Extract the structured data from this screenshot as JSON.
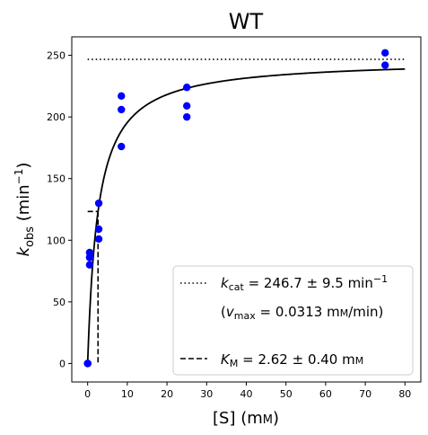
{
  "chart_data": {
    "type": "scatter",
    "title": "WT",
    "xlabel": "[S] (mM)",
    "ylabel": "k_obs (min^-1)",
    "xlim": [
      -4,
      84
    ],
    "ylim": [
      -15,
      265
    ],
    "xticks": [
      0,
      10,
      20,
      30,
      40,
      50,
      60,
      70,
      80
    ],
    "yticks": [
      0,
      50,
      100,
      150,
      200,
      250
    ],
    "grid": false,
    "legend_position": "lower-right",
    "colors": {
      "points": "#0000ff",
      "fit": "#000000"
    },
    "points": {
      "x": [
        0,
        0,
        0,
        0.5,
        0.5,
        0.5,
        2.8,
        2.8,
        2.8,
        8.5,
        8.5,
        8.5,
        25,
        25,
        25,
        75,
        75
      ],
      "y": [
        0,
        0,
        0,
        80,
        86,
        90,
        101,
        109,
        130,
        176,
        206,
        217,
        200,
        209,
        224,
        242,
        252
      ]
    },
    "fit": {
      "model": "michaelis-menten",
      "kcat": 246.7,
      "km": 2.62,
      "x_max": 80
    },
    "kcat_line": {
      "y": 246.7,
      "x": [
        0,
        80
      ]
    },
    "km_marker": {
      "x": 2.62,
      "y": 123.35
    },
    "legend": {
      "kcat_label": "k_cat = 246.7 ± 9.5 min⁻¹",
      "vmax_label": "(v_max = 0.0313 mM/min)",
      "km_label": "K_M = 2.62 ± 0.40 mM"
    }
  }
}
